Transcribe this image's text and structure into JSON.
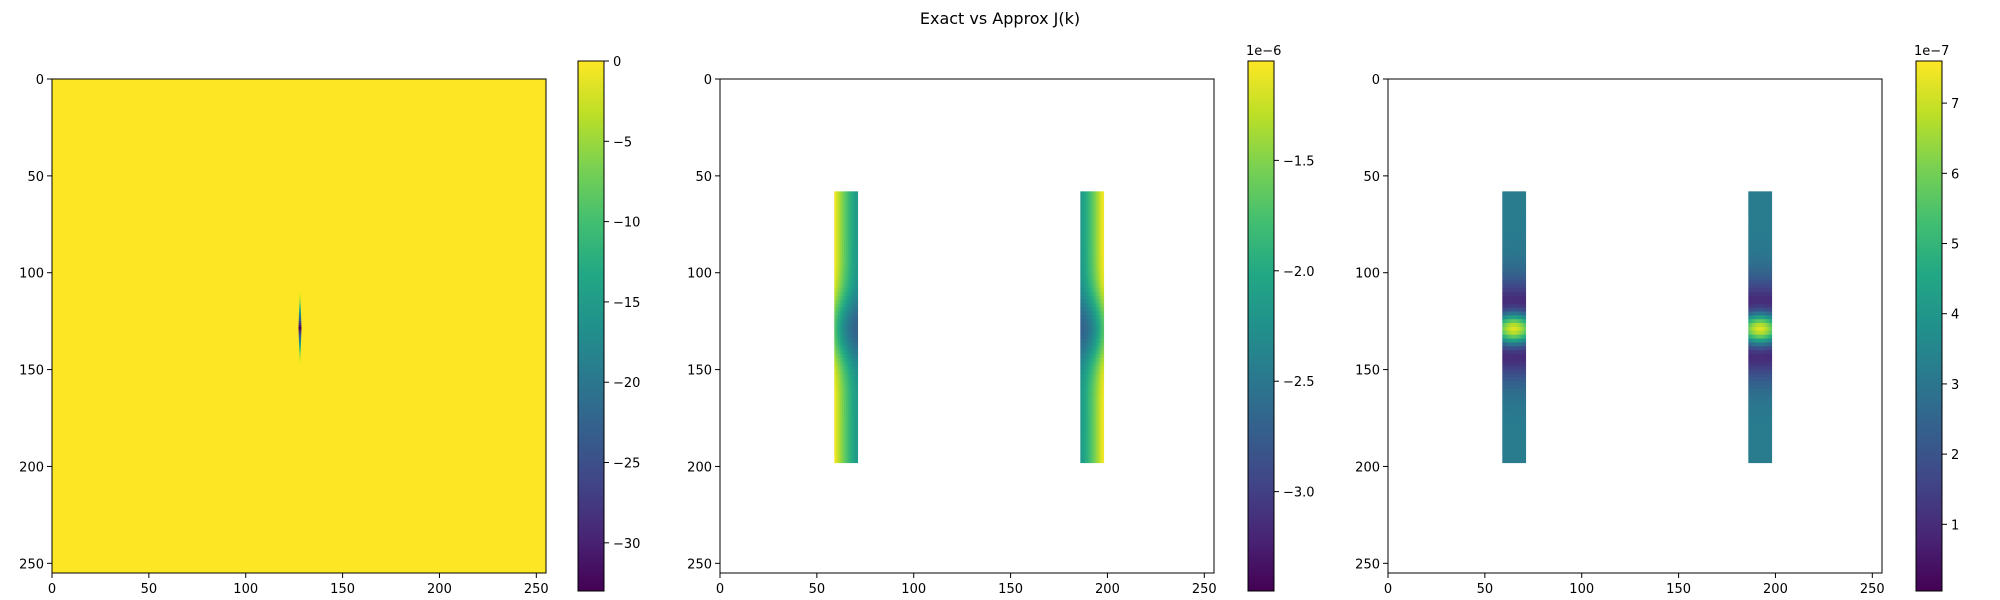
{
  "title": "Exact vs Approx J(k)",
  "chart_data": [
    {
      "type": "heatmap",
      "title": "",
      "xlabel": "",
      "ylabel": "",
      "xlim": [
        0,
        255
      ],
      "ylim": [
        255,
        0
      ],
      "xticks": [
        0,
        50,
        100,
        150,
        200,
        250
      ],
      "yticks": [
        0,
        50,
        100,
        150,
        200,
        250
      ],
      "colormap": "viridis",
      "colorbar": {
        "range": [
          -33,
          0
        ],
        "ticks": [
          0,
          -5,
          -10,
          -15,
          -20,
          -25,
          -30
        ],
        "tick_labels": [
          "0",
          "−5",
          "−10",
          "−15",
          "−20",
          "−25",
          "−30"
        ],
        "offset_label": ""
      },
      "background_value": 0,
      "features": [
        {
          "kind": "spike",
          "x_center": 128,
          "y_range": [
            108,
            148
          ],
          "min_value": -33
        }
      ]
    },
    {
      "type": "heatmap",
      "title": "",
      "xlabel": "",
      "ylabel": "",
      "xlim": [
        0,
        255
      ],
      "ylim": [
        255,
        0
      ],
      "xticks": [
        0,
        50,
        100,
        150,
        200,
        250
      ],
      "yticks": [
        0,
        50,
        100,
        150,
        200,
        250
      ],
      "colormap": "viridis",
      "colorbar": {
        "range": [
          -3.45,
          -1.05
        ],
        "ticks": [
          -1.5,
          -2.0,
          -2.5,
          -3.0
        ],
        "tick_labels": [
          "−1.5",
          "−2.0",
          "−2.5",
          "−3.0"
        ],
        "offset_label": "1e−6"
      },
      "background": "empty",
      "features": [
        {
          "kind": "strip",
          "x_range": [
            59,
            71
          ],
          "y_range": [
            58,
            198
          ],
          "value_at_outer_edge": -1.1,
          "value_at_inner_edge": -2.15,
          "center_row": 128,
          "center_value": -2.7
        },
        {
          "kind": "strip",
          "x_range": [
            186,
            198
          ],
          "y_range": [
            58,
            198
          ],
          "value_at_outer_edge": -1.1,
          "value_at_inner_edge": -2.15,
          "center_row": 128,
          "center_value": -2.7
        }
      ]
    },
    {
      "type": "heatmap",
      "title": "",
      "xlabel": "",
      "ylabel": "",
      "xlim": [
        0,
        255
      ],
      "ylim": [
        255,
        0
      ],
      "xticks": [
        0,
        50,
        100,
        150,
        200,
        250
      ],
      "yticks": [
        0,
        50,
        100,
        150,
        200,
        250
      ],
      "colormap": "viridis",
      "colorbar": {
        "range": [
          0.05,
          7.6
        ],
        "ticks": [
          1,
          2,
          3,
          4,
          5,
          6,
          7
        ],
        "tick_labels": [
          "1",
          "2",
          "3",
          "4",
          "5",
          "6",
          "7"
        ],
        "offset_label": "1e−7"
      },
      "background": "empty",
      "features": [
        {
          "kind": "strip",
          "x_range": [
            59,
            71
          ],
          "y_range": [
            58,
            198
          ],
          "base_value": 3.2,
          "center_row": 128,
          "peak_value": 7.2,
          "dip_value": 0.3
        },
        {
          "kind": "strip",
          "x_range": [
            186,
            198
          ],
          "y_range": [
            58,
            198
          ],
          "base_value": 3.2,
          "center_row": 128,
          "peak_value": 7.2,
          "dip_value": 0.3
        }
      ]
    }
  ]
}
